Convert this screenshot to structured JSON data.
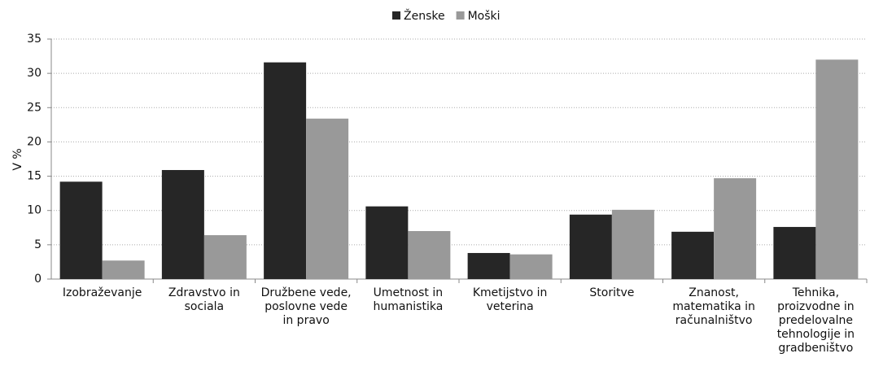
{
  "chart_data": {
    "type": "bar",
    "categories": [
      "Izobraževanje",
      "Zdravstvo in sociala",
      "Družbene vede, poslovne vede in pravo",
      "Umetnost in humanistika",
      "Kmetijstvo in veterina",
      "Storitve",
      "Znanost, matematika in računalništvo",
      "Tehnika, proizvodne in predelovalne tehnologije in gradbeništvo"
    ],
    "series": [
      {
        "name": "Ženske",
        "color": "#262626",
        "values": [
          14.2,
          15.9,
          31.6,
          10.6,
          3.8,
          9.4,
          6.9,
          7.6
        ]
      },
      {
        "name": "Moški",
        "color": "#999999",
        "values": [
          2.7,
          6.4,
          23.4,
          7.0,
          3.6,
          10.1,
          14.7,
          32.0
        ]
      }
    ],
    "ylabel": "V %",
    "ylim": [
      0,
      35
    ],
    "yticks": [
      0,
      5,
      10,
      15,
      20,
      25,
      30,
      35
    ],
    "grid": true,
    "legend": "top"
  }
}
